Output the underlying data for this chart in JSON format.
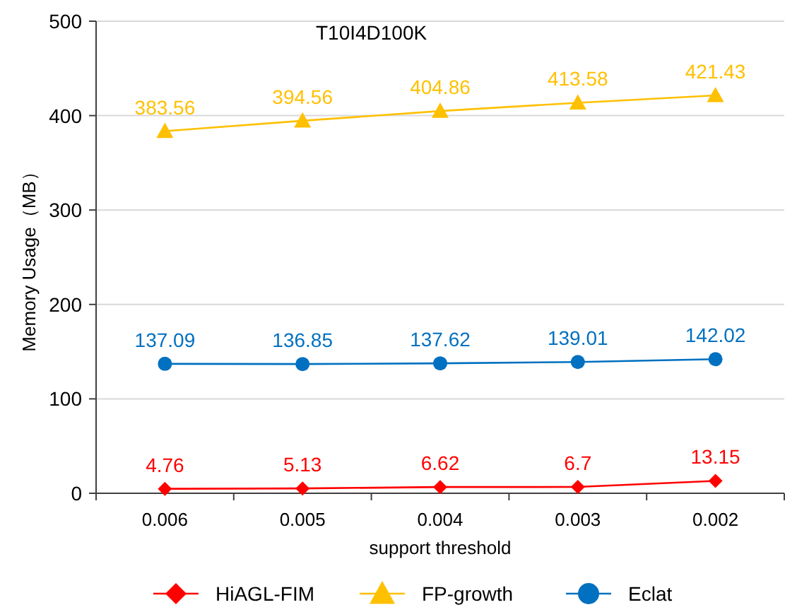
{
  "chart_data": {
    "type": "line",
    "title": "T10I4D100K",
    "xlabel": "support threshold",
    "ylabel": "Memory Usage（MB）",
    "categories": [
      "0.006",
      "0.005",
      "0.004",
      "0.003",
      "0.002"
    ],
    "series": [
      {
        "name": "HiAGL-FIM",
        "color": "#ff0000",
        "marker": "diamond",
        "values": [
          4.76,
          5.13,
          6.62,
          6.7,
          13.15
        ]
      },
      {
        "name": "FP-growth",
        "color": "#ffc000",
        "marker": "triangle",
        "values": [
          383.56,
          394.56,
          404.86,
          413.58,
          421.43
        ]
      },
      {
        "name": "Eclat",
        "color": "#0070c0",
        "marker": "circle",
        "values": [
          137.09,
          136.85,
          137.62,
          139.01,
          142.02
        ]
      }
    ],
    "ylim": [
      0,
      500
    ],
    "yticks": [
      0,
      100,
      200,
      300,
      400,
      500
    ],
    "grid": "y",
    "legend": "bottom",
    "data_labels": true,
    "line_style": "solid"
  }
}
